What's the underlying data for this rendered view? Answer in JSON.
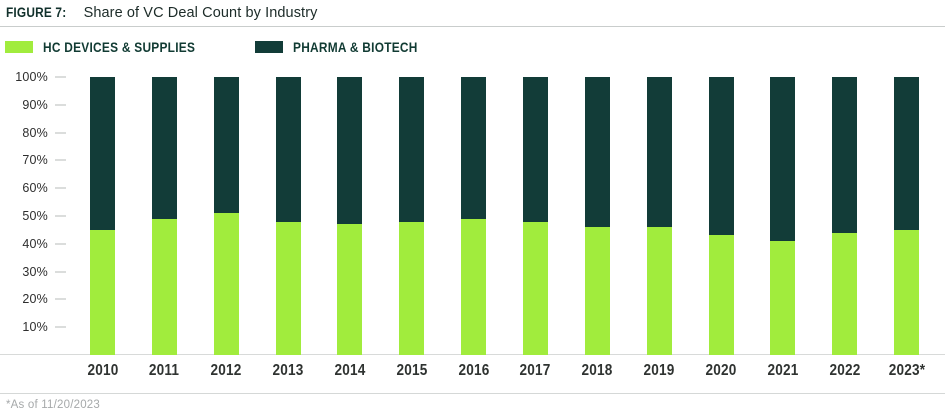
{
  "figure": {
    "label": "FIGURE 7:",
    "title": "Share of VC Deal Count by Industry",
    "footnote": "*As of 11/20/2023"
  },
  "legend": [
    {
      "label": "HC DEVICES & SUPPLIES",
      "color": "#a1ec3d"
    },
    {
      "label": "PHARMA & BIOTECH",
      "color": "#123c38"
    }
  ],
  "colors": {
    "hc_devices": "#a1ec3d",
    "pharma_biotech": "#123c38",
    "axis_gray": "#d8dad9",
    "tick_gray": "#dbdddc",
    "text_dark": "#12312c",
    "footnote_gray": "#a6a9aa"
  },
  "chart_data": {
    "type": "bar",
    "stacked": true,
    "unit": "percent",
    "title": "Share of VC Deal Count by Industry",
    "xlabel": "",
    "ylabel": "",
    "ylim": [
      0,
      100
    ],
    "yticks": [
      "100%",
      "90%",
      "80%",
      "70%",
      "60%",
      "50%",
      "40%",
      "30%",
      "20%",
      "10%"
    ],
    "grid": "ticks-only",
    "legend_position": "top-left",
    "categories": [
      "2010",
      "2011",
      "2012",
      "2013",
      "2014",
      "2015",
      "2016",
      "2017",
      "2018",
      "2019",
      "2020",
      "2021",
      "2022",
      "2023*"
    ],
    "series": [
      {
        "name": "HC DEVICES & SUPPLIES",
        "color": "#a1ec3d",
        "values": [
          45,
          49,
          51,
          48,
          47,
          48,
          49,
          48,
          46,
          46,
          43,
          41,
          44,
          45
        ]
      },
      {
        "name": "PHARMA & BIOTECH",
        "color": "#123c38",
        "values": [
          55,
          51,
          49,
          52,
          53,
          52,
          51,
          52,
          54,
          54,
          57,
          59,
          56,
          55
        ]
      }
    ]
  }
}
